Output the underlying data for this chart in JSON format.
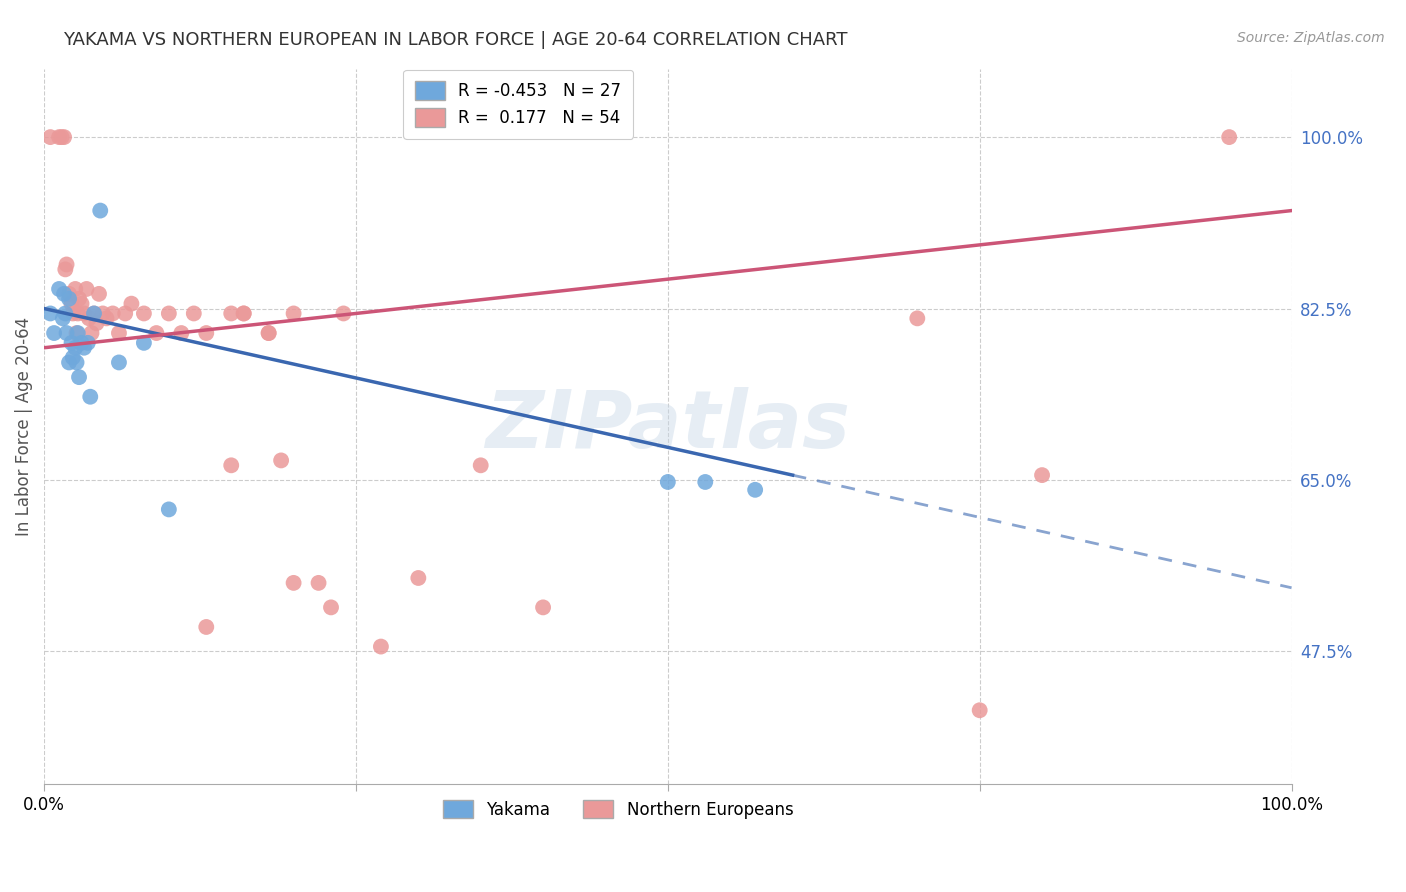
{
  "title": "YAKAMA VS NORTHERN EUROPEAN IN LABOR FORCE | AGE 20-64 CORRELATION CHART",
  "source": "Source: ZipAtlas.com",
  "ylabel": "In Labor Force | Age 20-64",
  "right_ytick_positions": [
    1.0,
    0.825,
    0.65,
    0.475
  ],
  "right_ytick_labels": [
    "100.0%",
    "82.5%",
    "65.0%",
    "47.5%"
  ],
  "watermark": "ZIPatlas",
  "legend_R_yakama": "-0.453",
  "legend_N_yakama": "27",
  "legend_R_northern": " 0.177",
  "legend_N_northern": "54",
  "yakama_color": "#6fa8dc",
  "northern_color": "#ea9999",
  "trend_blue": "#3a67b0",
  "trend_pink": "#cc5577",
  "background_color": "#ffffff",
  "grid_color": "#cccccc",
  "title_color": "#333333",
  "right_label_color": "#4472c4",
  "yakama_x": [
    0.005,
    0.008,
    0.012,
    0.015,
    0.016,
    0.017,
    0.018,
    0.02,
    0.02,
    0.022,
    0.023,
    0.025,
    0.026,
    0.027,
    0.028,
    0.03,
    0.032,
    0.035,
    0.037,
    0.04,
    0.045,
    0.06,
    0.08,
    0.1,
    0.5,
    0.53,
    0.57
  ],
  "yakama_y": [
    0.82,
    0.8,
    0.845,
    0.815,
    0.84,
    0.82,
    0.8,
    0.835,
    0.77,
    0.79,
    0.775,
    0.785,
    0.77,
    0.8,
    0.755,
    0.79,
    0.785,
    0.79,
    0.735,
    0.82,
    0.925,
    0.77,
    0.79,
    0.62,
    0.648,
    0.648,
    0.64
  ],
  "northern_x": [
    0.005,
    0.012,
    0.014,
    0.016,
    0.017,
    0.018,
    0.02,
    0.022,
    0.023,
    0.025,
    0.026,
    0.027,
    0.028,
    0.03,
    0.032,
    0.034,
    0.036,
    0.038,
    0.04,
    0.042,
    0.044,
    0.047,
    0.05,
    0.055,
    0.06,
    0.065,
    0.07,
    0.08,
    0.09,
    0.1,
    0.11,
    0.12,
    0.13,
    0.15,
    0.16,
    0.18,
    0.19,
    0.2,
    0.22,
    0.24,
    0.13,
    0.15,
    0.16,
    0.18,
    0.2,
    0.23,
    0.27,
    0.3,
    0.35,
    0.4,
    0.7,
    0.75,
    0.8,
    0.95
  ],
  "northern_y": [
    1.0,
    1.0,
    1.0,
    1.0,
    0.865,
    0.87,
    0.84,
    0.83,
    0.82,
    0.845,
    0.8,
    0.82,
    0.835,
    0.83,
    0.82,
    0.845,
    0.815,
    0.8,
    0.82,
    0.81,
    0.84,
    0.82,
    0.815,
    0.82,
    0.8,
    0.82,
    0.83,
    0.82,
    0.8,
    0.82,
    0.8,
    0.82,
    0.8,
    0.82,
    0.82,
    0.8,
    0.67,
    0.82,
    0.545,
    0.82,
    0.5,
    0.665,
    0.82,
    0.8,
    0.545,
    0.52,
    0.48,
    0.55,
    0.665,
    0.52,
    0.815,
    0.415,
    0.655,
    1.0
  ],
  "xmin": 0.0,
  "xmax": 1.0,
  "ymin": 0.34,
  "ymax": 1.07,
  "trend_yak_x0": 0.0,
  "trend_yak_y0": 0.825,
  "trend_yak_x1": 0.6,
  "trend_yak_y1": 0.655,
  "trend_yak_dash_x0": 0.6,
  "trend_yak_dash_y0": 0.655,
  "trend_yak_dash_x1": 1.0,
  "trend_yak_dash_y1": 0.54,
  "trend_nor_x0": 0.0,
  "trend_nor_y0": 0.785,
  "trend_nor_x1": 1.0,
  "trend_nor_y1": 0.925
}
